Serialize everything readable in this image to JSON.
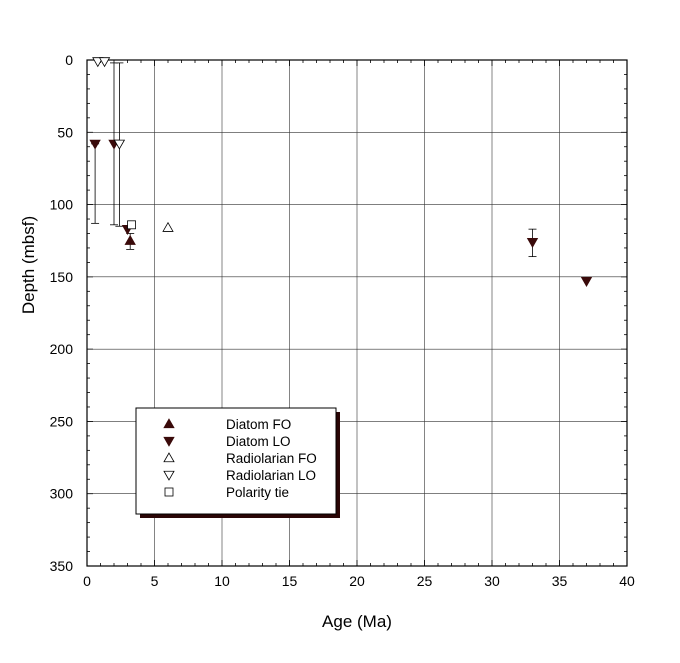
{
  "chart_data": {
    "type": "scatter",
    "xlabel": "Age (Ma)",
    "ylabel": "Depth (mbsf)",
    "xlim": [
      0,
      40
    ],
    "ylim": [
      0,
      350
    ],
    "y_inverted": true,
    "x_ticks": [
      0,
      5,
      10,
      15,
      20,
      25,
      30,
      35,
      40
    ],
    "y_ticks": [
      0,
      50,
      100,
      150,
      200,
      250,
      300,
      350
    ],
    "grid": true,
    "legend_position": "lower-left",
    "series": [
      {
        "name": "Diatom FO",
        "marker": "triangle-up-filled",
        "points": [
          {
            "x": 3.2,
            "y": 125,
            "y_low": 120,
            "y_high": 131
          }
        ]
      },
      {
        "name": "Diatom LO",
        "marker": "triangle-down-filled",
        "points": [
          {
            "x": 0.6,
            "y": 58,
            "y_low": 58,
            "y_high": 113
          },
          {
            "x": 2.0,
            "y": 58,
            "y_low": 2,
            "y_high": 114
          },
          {
            "x": 3.0,
            "y": 117
          },
          {
            "x": 33.0,
            "y": 126,
            "y_low": 117,
            "y_high": 136
          },
          {
            "x": 37.0,
            "y": 153
          }
        ]
      },
      {
        "name": "Radiolarian FO",
        "marker": "triangle-up-open",
        "points": [
          {
            "x": 6.0,
            "y": 116
          }
        ]
      },
      {
        "name": "Radiolarian LO",
        "marker": "triangle-down-open",
        "points": [
          {
            "x": 0.8,
            "y": 1
          },
          {
            "x": 1.3,
            "y": 1
          },
          {
            "x": 2.4,
            "y": 58,
            "y_low": 2,
            "y_high": 115
          }
        ]
      },
      {
        "name": "Polarity tie",
        "marker": "square-open",
        "points": [
          {
            "x": 3.3,
            "y": 114
          }
        ]
      }
    ]
  },
  "colors": {
    "filled_marker": "#3a0a0a",
    "axis": "#000000",
    "grid": "#333333",
    "legend_shadow": "#2a0505"
  }
}
